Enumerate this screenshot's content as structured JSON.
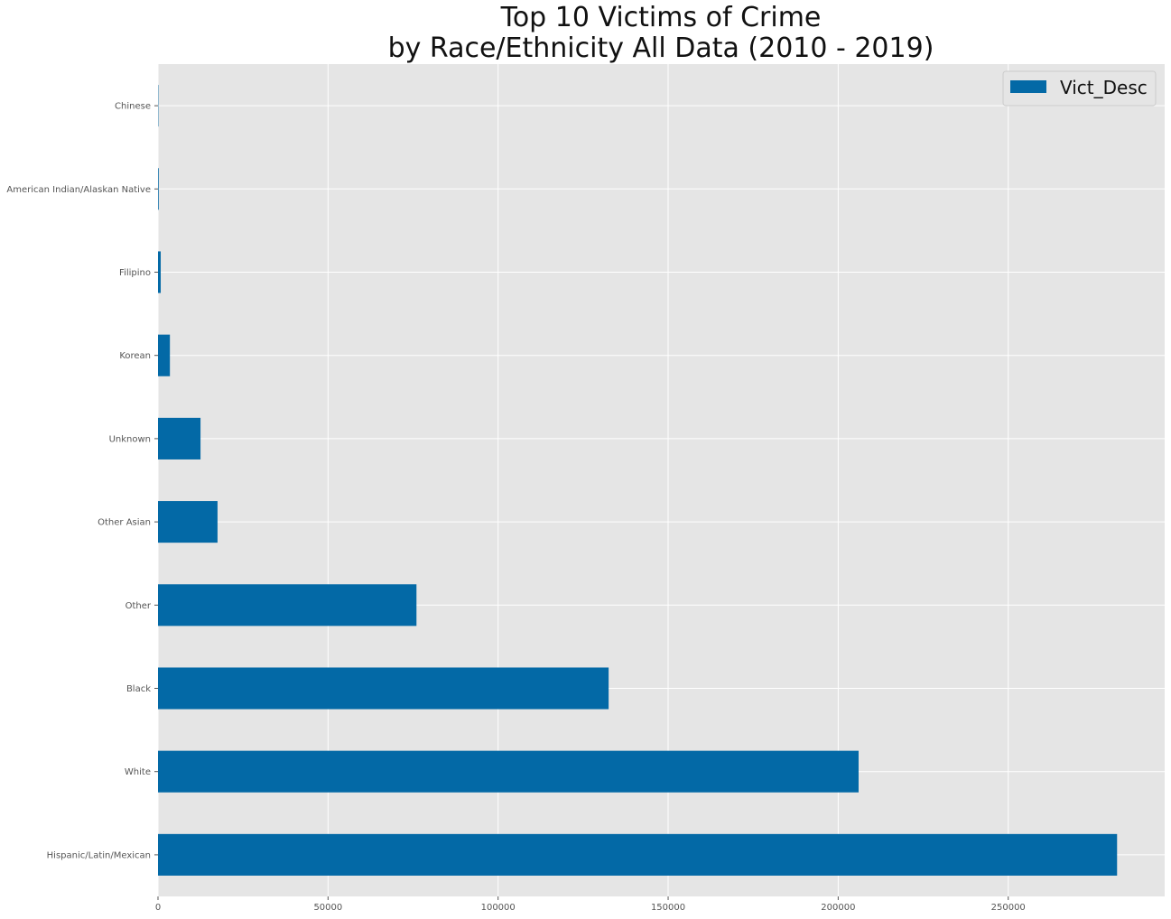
{
  "chart_data": {
    "type": "bar",
    "orientation": "horizontal",
    "title_lines": [
      "Top 10 Victims of Crime",
      "by Race/Ethnicity All Data (2010 - 2019)"
    ],
    "xlabel": "",
    "ylabel": "",
    "categories": [
      "Hispanic/Latin/Mexican",
      "White",
      "Black",
      "Other",
      "Other Asian",
      "Unknown",
      "Korean",
      "Filipino",
      "American Indian/Alaskan Native",
      "Chinese"
    ],
    "series": [
      {
        "name": "Vict_Desc",
        "values": [
          282000,
          206000,
          132500,
          76000,
          17500,
          12500,
          3500,
          800,
          200,
          100
        ]
      }
    ],
    "xlim": [
      0,
      296000
    ],
    "x_ticks": [
      0,
      50000,
      100000,
      150000,
      200000,
      250000
    ],
    "x_tick_labels": [
      "0",
      "50000",
      "100000",
      "150000",
      "200000",
      "250000"
    ],
    "grid": true,
    "legend_position": "top-right",
    "colors": {
      "bar": "#0369a6",
      "plot_background": "#e5e5e5",
      "grid": "#ffffff"
    }
  }
}
